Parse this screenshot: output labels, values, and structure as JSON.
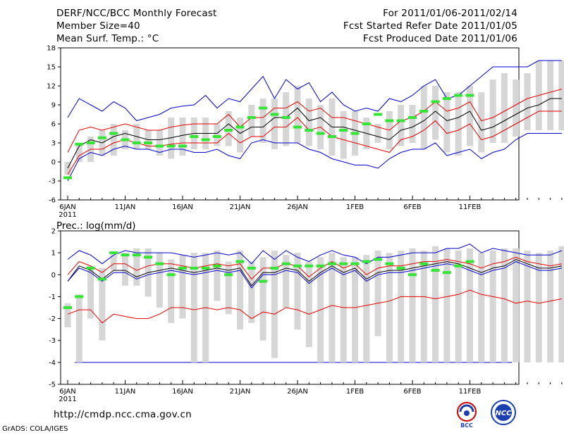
{
  "header": {
    "title": "DERF/NCC/BCC Monthly Forecast",
    "member_size": "Member Size=40",
    "variable": "Mean Surf. Temp.: °C",
    "period": "For 2011/01/06-2011/02/14",
    "fcst_started": "Fcst Started Refer Date 2011/01/05",
    "fcst_produced": "Fcst Produced Date 2011/01/06"
  },
  "footer": {
    "url": "http://cmdp.ncc.cma.gov.cn",
    "credit": "GrADS: COLA/IGES",
    "logo_bcc": "BCC",
    "logo_ncc": "NCC"
  },
  "colors": {
    "bar": "#d6d6d6",
    "observed": "#33e633",
    "mean": "#000000",
    "spread": "#e60000",
    "extreme": "#0000cc"
  },
  "chart_data": [
    {
      "id": "temperature",
      "type": "line",
      "title": "Mean Surf. Temp.: °C",
      "x_labels": [
        "6JAN",
        "11JAN",
        "16JAN",
        "21JAN",
        "26JAN",
        "1FEB",
        "6FEB",
        "11FEB"
      ],
      "year_label": "2011",
      "ylim": [
        -6,
        18
      ],
      "yticks": [
        "-6",
        "-3",
        "0",
        "3",
        "6",
        "9",
        "12",
        "15",
        "18"
      ],
      "ytick_values": [
        -6,
        -3,
        0,
        3,
        6,
        9,
        12,
        15,
        18
      ],
      "series": [
        {
          "name": "ensemble-mean",
          "values": [
            -1.0,
            2.5,
            3.5,
            3.0,
            4.0,
            4.5,
            4.0,
            3.5,
            3.5,
            3.8,
            4.2,
            4.5,
            4.5,
            4.5,
            6.0,
            4.5,
            5.5,
            5.5,
            7.0,
            7.0,
            8.5,
            6.5,
            7.0,
            5.5,
            5.5,
            5.0,
            4.5,
            4.0,
            3.5,
            5.0,
            5.5,
            6.5,
            8.0,
            6.5,
            7.0,
            8.0,
            5.0,
            5.5,
            6.5,
            7.5,
            8.5,
            9.0,
            10.0,
            10.0
          ]
        },
        {
          "name": "spread-upper",
          "values": [
            1.5,
            5.0,
            5.5,
            5.0,
            5.5,
            6.0,
            5.5,
            5.0,
            5.0,
            5.5,
            5.8,
            6.0,
            6.0,
            6.0,
            7.5,
            5.5,
            7.0,
            7.0,
            8.5,
            8.5,
            9.5,
            8.0,
            8.5,
            7.0,
            7.0,
            6.5,
            6.0,
            5.5,
            5.0,
            6.5,
            7.0,
            8.0,
            9.5,
            8.0,
            8.5,
            9.5,
            6.5,
            7.0,
            8.0,
            9.0,
            10.0,
            10.5,
            11.0,
            11.5
          ]
        },
        {
          "name": "spread-lower",
          "values": [
            -2.0,
            1.0,
            2.0,
            2.0,
            3.0,
            3.5,
            3.0,
            2.5,
            2.5,
            2.8,
            3.0,
            3.0,
            3.0,
            3.0,
            4.5,
            3.0,
            4.0,
            4.0,
            5.5,
            5.5,
            7.0,
            5.0,
            5.5,
            4.0,
            3.5,
            3.0,
            2.5,
            2.0,
            1.5,
            3.5,
            4.0,
            5.0,
            6.5,
            4.5,
            5.0,
            6.0,
            3.5,
            4.0,
            5.0,
            6.0,
            7.0,
            8.0,
            8.0,
            8.0
          ]
        },
        {
          "name": "max-envelope",
          "values": [
            7.0,
            10.0,
            9.0,
            8.0,
            9.5,
            8.5,
            6.5,
            7.0,
            7.5,
            8.5,
            8.8,
            9.0,
            10.5,
            8.5,
            10.0,
            9.5,
            11.5,
            13.5,
            10.0,
            13.0,
            11.5,
            12.5,
            9.5,
            11.0,
            9.0,
            8.0,
            8.5,
            8.0,
            10.0,
            9.5,
            10.5,
            12.0,
            13.0,
            10.0,
            10.5,
            12.0,
            13.5,
            15.0,
            15.0,
            15.0,
            15.0,
            16.0,
            16.0,
            16.0
          ]
        },
        {
          "name": "min-envelope",
          "values": [
            -3.0,
            0.5,
            1.5,
            1.0,
            2.0,
            2.5,
            2.0,
            2.0,
            1.5,
            2.0,
            2.0,
            1.5,
            1.5,
            2.0,
            1.0,
            0.5,
            3.0,
            3.5,
            3.0,
            3.0,
            3.0,
            2.0,
            1.5,
            0.5,
            0.0,
            -0.5,
            -0.5,
            -1.0,
            0.5,
            1.5,
            2.0,
            2.0,
            3.0,
            1.0,
            1.5,
            2.0,
            0.5,
            1.5,
            2.0,
            3.5,
            4.5,
            4.5,
            4.5,
            4.5
          ]
        }
      ],
      "observed": [
        -2.5,
        2.8,
        3.0,
        3.8,
        4.5,
        3.5,
        3.0,
        3.0,
        2.5,
        2.5,
        2.5,
        4.0,
        3.5,
        4.0,
        5.0,
        5.5,
        7.0,
        8.5,
        7.5,
        7.0,
        5.5,
        5.0,
        4.5,
        4.0,
        5.0,
        4.5,
        6.0,
        7.5,
        6.5,
        6.5,
        7.0,
        8.0,
        9.5,
        10.0,
        10.5,
        10.5
      ],
      "bars_low": [
        -2,
        0,
        0,
        1,
        1,
        2,
        2,
        2,
        1,
        0.5,
        1,
        2,
        2,
        2.5,
        2.5,
        1.5,
        4,
        3,
        2,
        2.5,
        3,
        2.5,
        2,
        1,
        0.5,
        1,
        2,
        3,
        2,
        2.5,
        3,
        2,
        3.5,
        1.5,
        1,
        2.5,
        1.5,
        3,
        3,
        4,
        5,
        5,
        5,
        5
      ],
      "bars_high": [
        0,
        3,
        4,
        5,
        6,
        5,
        6,
        5,
        5,
        7,
        7,
        7,
        7,
        6,
        8,
        7,
        9,
        10,
        10,
        11,
        12,
        10,
        9,
        10,
        8,
        8,
        7,
        6,
        8,
        9,
        9,
        12,
        12,
        11,
        11,
        12,
        11,
        13,
        14,
        13,
        14,
        16,
        16,
        16
      ]
    },
    {
      "id": "precipitation",
      "type": "line",
      "title": "Prec.: log(mm/d)",
      "x_labels": [
        "6JAN",
        "11JAN",
        "16JAN",
        "21JAN",
        "26JAN",
        "1FEB",
        "6FEB",
        "11FEB"
      ],
      "year_label": "2011",
      "ylim": [
        -5,
        2
      ],
      "yticks": [
        "-5",
        "-4",
        "-3",
        "-2",
        "-1",
        "0",
        "1",
        "2"
      ],
      "ytick_values": [
        -5,
        -4,
        -3,
        -2,
        -1,
        0,
        1,
        2
      ],
      "reference_line": -4,
      "series": [
        {
          "name": "ensemble-mean",
          "values": [
            -0.3,
            0.4,
            0.2,
            -0.2,
            0.2,
            0.2,
            -0.1,
            0.1,
            0.2,
            0.3,
            0.2,
            0.1,
            0.2,
            0.3,
            0.2,
            0.3,
            -0.5,
            0.1,
            0.1,
            0.3,
            0.2,
            -0.3,
            0.1,
            0.4,
            0.1,
            0.3,
            -0.2,
            0.1,
            0.2,
            0.2,
            0.3,
            0.4,
            0.5,
            0.6,
            0.5,
            0.3,
            0.1,
            0.3,
            0.4,
            0.7,
            0.5,
            0.3,
            0.3,
            0.4
          ]
        },
        {
          "name": "spread-upper",
          "values": [
            0.0,
            0.6,
            0.4,
            0.1,
            0.5,
            0.5,
            0.2,
            0.4,
            0.5,
            0.5,
            0.4,
            0.3,
            0.4,
            0.5,
            0.4,
            0.5,
            -0.2,
            0.3,
            0.3,
            0.5,
            0.4,
            -0.1,
            0.3,
            0.6,
            0.3,
            0.5,
            0.0,
            0.3,
            0.4,
            0.4,
            0.5,
            0.6,
            0.6,
            0.7,
            0.6,
            0.5,
            0.3,
            0.5,
            0.6,
            0.8,
            0.6,
            0.5,
            0.4,
            0.5
          ]
        },
        {
          "name": "spread-lower",
          "values": [
            -1.8,
            -1.6,
            -1.6,
            -2.2,
            -1.8,
            -1.9,
            -2.0,
            -2.0,
            -1.8,
            -1.5,
            -1.5,
            -1.6,
            -1.5,
            -1.6,
            -1.5,
            -1.6,
            -2.0,
            -1.7,
            -1.8,
            -1.5,
            -1.6,
            -1.8,
            -1.6,
            -1.4,
            -1.5,
            -1.5,
            -1.4,
            -1.3,
            -1.2,
            -1.0,
            -1.0,
            -1.0,
            -1.1,
            -1.0,
            -0.9,
            -0.7,
            -0.9,
            -1.0,
            -1.1,
            -1.3,
            -1.2,
            -1.3,
            -1.2,
            -1.1
          ]
        },
        {
          "name": "max-envelope",
          "values": [
            0.7,
            1.1,
            0.9,
            0.5,
            0.9,
            1.1,
            1.0,
            1.0,
            1.0,
            1.0,
            0.9,
            0.8,
            0.9,
            1.0,
            0.9,
            1.0,
            0.5,
            1.1,
            0.7,
            1.1,
            0.8,
            0.6,
            0.9,
            1.1,
            0.9,
            0.8,
            0.5,
            0.8,
            0.8,
            0.9,
            1.0,
            1.0,
            1.0,
            1.2,
            1.2,
            1.4,
            1.0,
            1.2,
            1.1,
            1.0,
            0.9,
            0.9,
            0.9,
            1.1
          ]
        },
        {
          "name": "min-envelope",
          "values": [
            -0.3,
            0.3,
            0.1,
            -0.3,
            0.1,
            0.1,
            -0.2,
            0.0,
            0.1,
            0.2,
            0.1,
            0.0,
            0.1,
            0.2,
            0.1,
            0.2,
            -0.6,
            0.0,
            0.0,
            0.2,
            0.1,
            -0.4,
            0.0,
            0.3,
            0.0,
            0.2,
            -0.3,
            0.0,
            0.1,
            0.1,
            0.2,
            0.3,
            0.4,
            0.5,
            0.4,
            0.2,
            0.0,
            0.2,
            0.3,
            0.6,
            0.4,
            0.2,
            0.2,
            0.3
          ]
        }
      ],
      "observed": [
        -1.5,
        -1.0,
        0.3,
        -0.2,
        1.0,
        0.9,
        0.9,
        0.8,
        0.5,
        0.0,
        0.3,
        0.3,
        0.3,
        0.4,
        0.0,
        0.6,
        0.3,
        -0.3,
        0.3,
        0.5,
        0.4,
        0.4,
        0.4,
        0.5,
        0.5,
        0.5,
        0.6,
        0.7,
        0.5,
        0.3,
        0.0,
        0.5,
        0.2,
        0.1,
        0.4,
        0.6
      ],
      "bars_low": [
        -2.4,
        -4,
        -2.0,
        -3.0,
        0.2,
        -0.5,
        -0.5,
        -1.0,
        -1.5,
        -2.2,
        -2.0,
        -4,
        -4,
        -1.2,
        -1.8,
        -2.5,
        -2.2,
        -3.0,
        -3.8,
        -1.5,
        -2.5,
        -3.3,
        -4,
        -4,
        -4,
        -4,
        -4,
        -2.8,
        -4,
        -4,
        -4,
        -4,
        -4,
        -4,
        -4,
        -4,
        -4,
        -4,
        -4,
        -4,
        -4,
        -4,
        -4,
        -4
      ],
      "bars_high": [
        -1.3,
        -0.9,
        0.4,
        0.3,
        0.9,
        1.0,
        1.2,
        1.2,
        1.0,
        0.7,
        0.9,
        1.0,
        1.0,
        1.1,
        0.6,
        1.1,
        0.6,
        0.8,
        1.1,
        0.9,
        1.0,
        0.6,
        0.8,
        1.0,
        0.8,
        0.8,
        0.9,
        1.1,
        1.0,
        1.1,
        1.2,
        1.1,
        1.3,
        1.2,
        1.1,
        1.2,
        1.0,
        1.1,
        1.2,
        1.2,
        1.1,
        1.0,
        1.1,
        1.3
      ]
    }
  ]
}
